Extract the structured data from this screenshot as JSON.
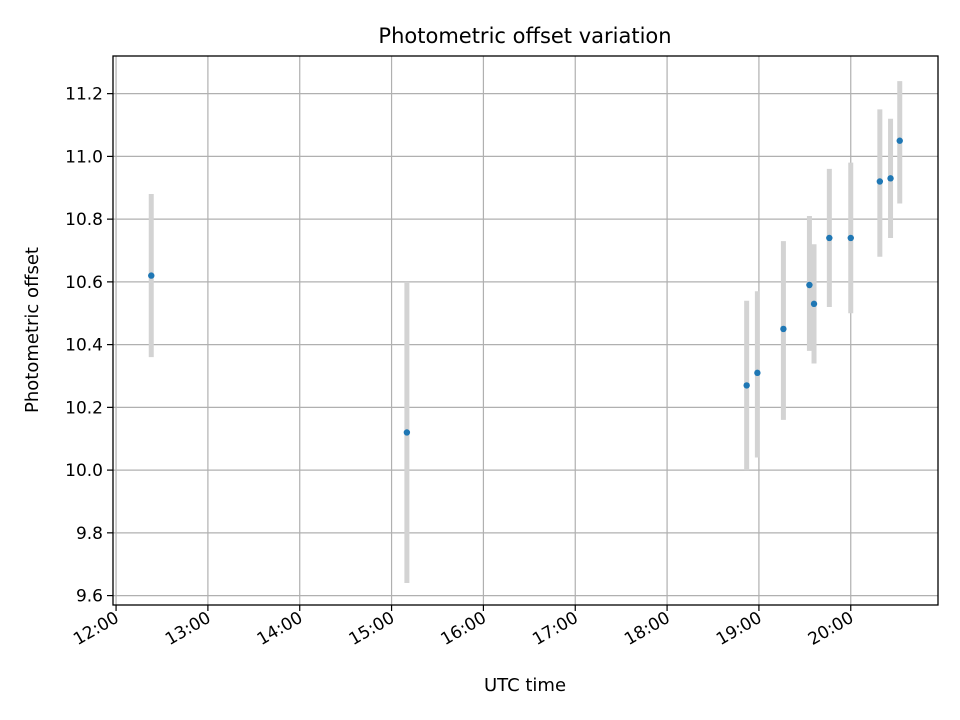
{
  "chart_data": {
    "type": "scatter",
    "title": "Photometric offset variation",
    "xlabel": "UTC time",
    "ylabel": "Photometric offset",
    "xlim": [
      "11:58",
      "20:57"
    ],
    "ylim": [
      9.57,
      11.32
    ],
    "x_ticks": [
      "12:00",
      "13:00",
      "14:00",
      "15:00",
      "16:00",
      "17:00",
      "18:00",
      "19:00",
      "20:00"
    ],
    "y_ticks": [
      9.6,
      9.8,
      10.0,
      10.2,
      10.4,
      10.6,
      10.8,
      11.0,
      11.2
    ],
    "grid": true,
    "points": [
      {
        "x": "12:23",
        "y": 10.62,
        "ylow": 10.36,
        "yhigh": 10.88
      },
      {
        "x": "15:10",
        "y": 10.12,
        "ylow": 9.64,
        "yhigh": 10.6
      },
      {
        "x": "18:52",
        "y": 10.27,
        "ylow": 10.0,
        "yhigh": 10.54
      },
      {
        "x": "18:59",
        "y": 10.31,
        "ylow": 10.04,
        "yhigh": 10.57
      },
      {
        "x": "19:16",
        "y": 10.45,
        "ylow": 10.16,
        "yhigh": 10.73
      },
      {
        "x": "19:33",
        "y": 10.59,
        "ylow": 10.38,
        "yhigh": 10.81
      },
      {
        "x": "19:36",
        "y": 10.53,
        "ylow": 10.34,
        "yhigh": 10.72
      },
      {
        "x": "19:46",
        "y": 10.74,
        "ylow": 10.52,
        "yhigh": 10.96
      },
      {
        "x": "20:00",
        "y": 10.74,
        "ylow": 10.5,
        "yhigh": 10.98
      },
      {
        "x": "20:19",
        "y": 10.92,
        "ylow": 10.68,
        "yhigh": 11.15
      },
      {
        "x": "20:26",
        "y": 10.93,
        "ylow": 10.74,
        "yhigh": 11.12
      },
      {
        "x": "20:32",
        "y": 11.05,
        "ylow": 10.85,
        "yhigh": 11.24
      }
    ],
    "point_color": "#1f77b4",
    "errorbar_color": "#d3d3d3",
    "grid_color": "#b0b0b0"
  }
}
